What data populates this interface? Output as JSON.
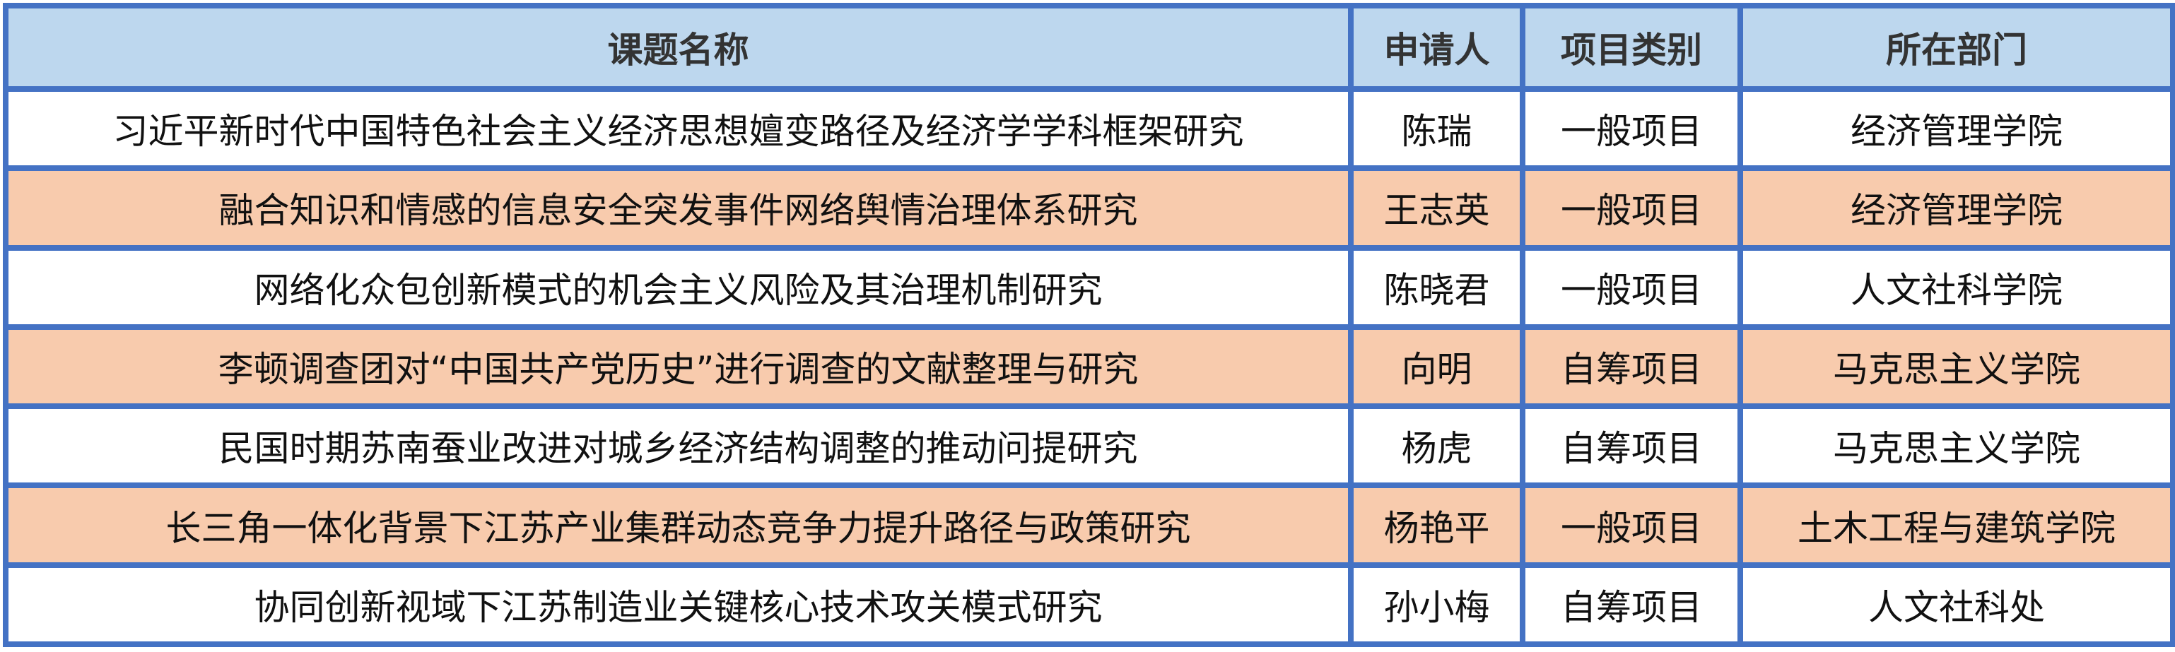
{
  "colors": {
    "border": "#4472C4",
    "header_bg": "#BDD7EE",
    "highlight_row": "#F8CBAD"
  },
  "headers": [
    "课题名称",
    "申请人",
    "项目类别",
    "所在部门"
  ],
  "rows": [
    {
      "title": "习近平新时代中国特色社会主义经济思想嬗变路径及经济学学科框架研究",
      "applicant": "陈瑞",
      "category": "一般项目",
      "department": "经济管理学院",
      "highlighted": false
    },
    {
      "title": "融合知识和情感的信息安全突发事件网络舆情治理体系研究",
      "applicant": "王志英",
      "category": "一般项目",
      "department": "经济管理学院",
      "highlighted": true
    },
    {
      "title": "网络化众包创新模式的机会主义风险及其治理机制研究",
      "applicant": "陈晓君",
      "category": "一般项目",
      "department": "人文社科学院",
      "highlighted": false
    },
    {
      "title": "李顿调查团对“中国共产党历史”进行调查的文献整理与研究",
      "applicant": "向明",
      "category": "自筹项目",
      "department": "马克思主义学院",
      "highlighted": true
    },
    {
      "title": "民国时期苏南蚕业改进对城乡经济结构调整的推动问提研究",
      "applicant": "杨虎",
      "category": "自筹项目",
      "department": "马克思主义学院",
      "highlighted": false
    },
    {
      "title": "长三角一体化背景下江苏产业集群动态竞争力提升路径与政策研究",
      "applicant": "杨艳平",
      "category": "一般项目",
      "department": "土木工程与建筑学院",
      "highlighted": true
    },
    {
      "title": "协同创新视域下江苏制造业关键核心技术攻关模式研究",
      "applicant": "孙小梅",
      "category": "自筹项目",
      "department": "人文社科处",
      "highlighted": false
    }
  ]
}
